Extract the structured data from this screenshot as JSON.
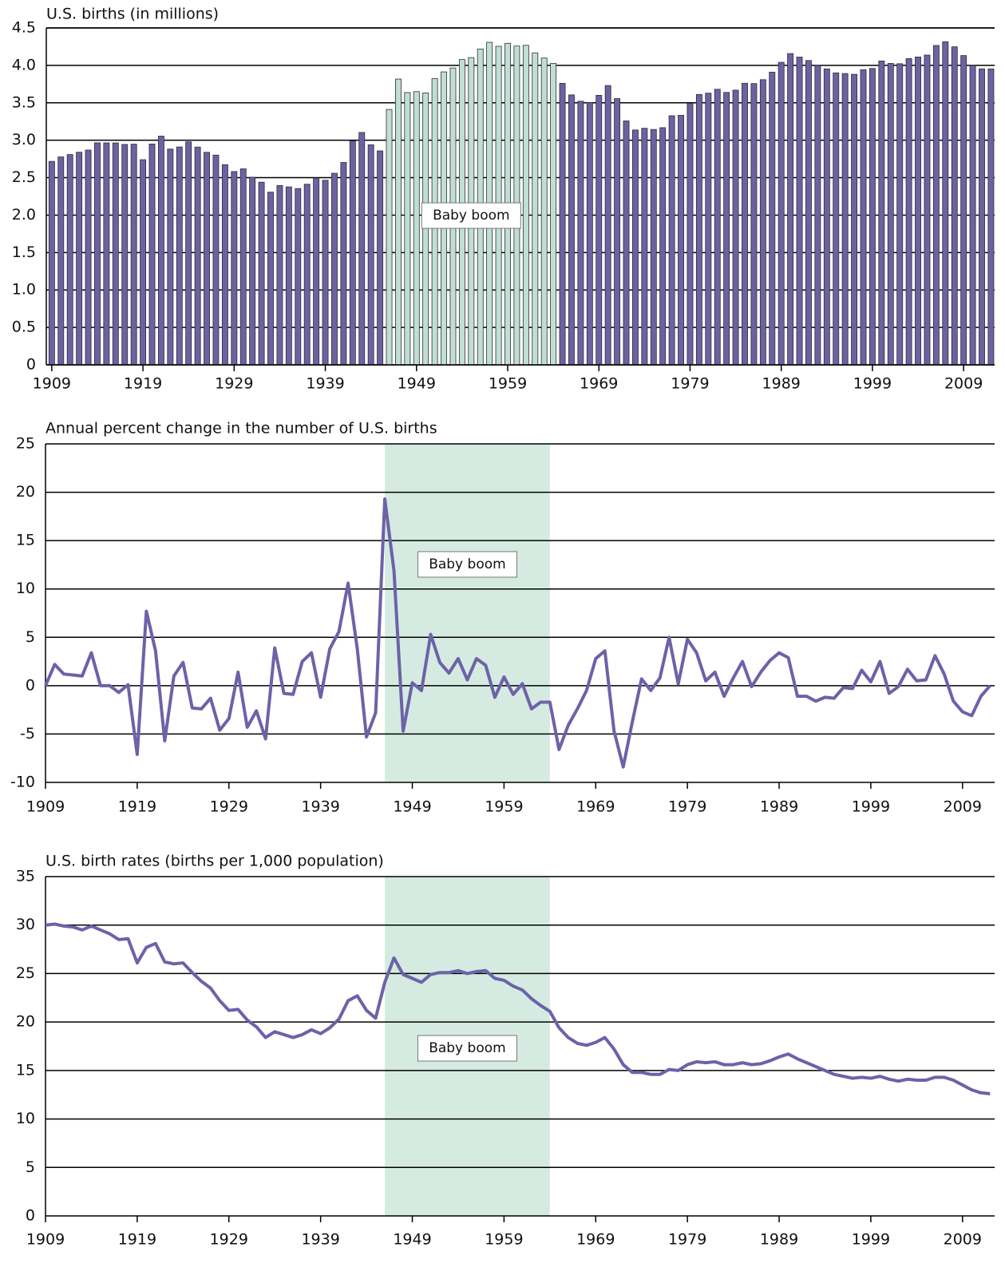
{
  "chart_data": [
    {
      "type": "bar",
      "title": "U.S. births (in millions)",
      "annotation": "Baby boom",
      "x": [
        1909,
        1910,
        1911,
        1912,
        1913,
        1914,
        1915,
        1916,
        1917,
        1918,
        1919,
        1920,
        1921,
        1922,
        1923,
        1924,
        1925,
        1926,
        1927,
        1928,
        1929,
        1930,
        1931,
        1932,
        1933,
        1934,
        1935,
        1936,
        1937,
        1938,
        1939,
        1940,
        1941,
        1942,
        1943,
        1944,
        1945,
        1946,
        1947,
        1948,
        1949,
        1950,
        1951,
        1952,
        1953,
        1954,
        1955,
        1956,
        1957,
        1958,
        1959,
        1960,
        1961,
        1962,
        1963,
        1964,
        1965,
        1966,
        1967,
        1968,
        1969,
        1970,
        1971,
        1972,
        1973,
        1974,
        1975,
        1976,
        1977,
        1978,
        1979,
        1980,
        1981,
        1982,
        1983,
        1984,
        1985,
        1986,
        1987,
        1988,
        1989,
        1990,
        1991,
        1992,
        1993,
        1994,
        1995,
        1996,
        1997,
        1998,
        1999,
        2000,
        2001,
        2002,
        2003,
        2004,
        2005,
        2006,
        2007,
        2008,
        2009,
        2010,
        2011,
        2012
      ],
      "values": [
        2.718,
        2.777,
        2.809,
        2.84,
        2.869,
        2.966,
        2.965,
        2.964,
        2.944,
        2.948,
        2.74,
        2.95,
        3.055,
        2.882,
        2.91,
        2.979,
        2.909,
        2.839,
        2.802,
        2.674,
        2.582,
        2.618,
        2.506,
        2.44,
        2.307,
        2.396,
        2.377,
        2.355,
        2.413,
        2.496,
        2.466,
        2.559,
        2.703,
        2.989,
        3.104,
        2.939,
        2.858,
        3.411,
        3.817,
        3.637,
        3.649,
        3.632,
        3.823,
        3.913,
        3.965,
        4.078,
        4.104,
        4.218,
        4.308,
        4.255,
        4.295,
        4.258,
        4.268,
        4.167,
        4.098,
        4.027,
        3.76,
        3.606,
        3.521,
        3.502,
        3.6,
        3.731,
        3.556,
        3.258,
        3.137,
        3.16,
        3.144,
        3.168,
        3.327,
        3.333,
        3.494,
        3.612,
        3.629,
        3.681,
        3.639,
        3.669,
        3.761,
        3.757,
        3.809,
        3.91,
        4.041,
        4.158,
        4.111,
        4.065,
        4.0,
        3.953,
        3.9,
        3.891,
        3.881,
        3.942,
        3.959,
        4.059,
        4.026,
        4.022,
        4.09,
        4.112,
        4.138,
        4.266,
        4.316,
        4.248,
        4.131,
        3.999,
        3.954,
        3.953
      ],
      "color": "#6d62a0",
      "highlight": [
        1946,
        1964
      ],
      "highlight_color": "#bfe0cf",
      "xlim": [
        1908.4,
        2012.4
      ],
      "xticks": [
        1909,
        1919,
        1929,
        1939,
        1949,
        1959,
        1969,
        1979,
        1989,
        1999,
        2009
      ],
      "ylim": [
        0,
        4.5
      ],
      "yticks": [
        0,
        0.5,
        {
          "value": 1,
          "label": "1.0"
        },
        1.5,
        {
          "value": 2,
          "label": "2.0"
        },
        2.5,
        {
          "value": 3,
          "label": "3.0"
        },
        3.5,
        {
          "value": 4,
          "label": "4.0"
        },
        4.5
      ],
      "grid": true
    },
    {
      "type": "line",
      "title": "Annual percent change in the number of U.S. births",
      "annotation": "Baby boom",
      "x": [
        1909,
        1910,
        1911,
        1912,
        1913,
        1914,
        1915,
        1916,
        1917,
        1918,
        1919,
        1920,
        1921,
        1922,
        1923,
        1924,
        1925,
        1926,
        1927,
        1928,
        1929,
        1930,
        1931,
        1932,
        1933,
        1934,
        1935,
        1936,
        1937,
        1938,
        1939,
        1940,
        1941,
        1942,
        1943,
        1944,
        1945,
        1946,
        1947,
        1948,
        1949,
        1950,
        1951,
        1952,
        1953,
        1954,
        1955,
        1956,
        1957,
        1958,
        1959,
        1960,
        1961,
        1962,
        1963,
        1964,
        1965,
        1966,
        1967,
        1968,
        1969,
        1970,
        1971,
        1972,
        1973,
        1974,
        1975,
        1976,
        1977,
        1978,
        1979,
        1980,
        1981,
        1982,
        1983,
        1984,
        1985,
        1986,
        1987,
        1988,
        1989,
        1990,
        1991,
        1992,
        1993,
        1994,
        1995,
        1996,
        1997,
        1998,
        1999,
        2000,
        2001,
        2002,
        2003,
        2004,
        2005,
        2006,
        2007,
        2008,
        2009,
        2010,
        2011,
        2012
      ],
      "values": [
        0,
        2.2,
        1.2,
        1.1,
        1.0,
        3.4,
        0,
        0,
        -0.7,
        0.1,
        -7.1,
        7.7,
        3.6,
        -5.7,
        1.0,
        2.4,
        -2.3,
        -2.4,
        -1.3,
        -4.6,
        -3.4,
        1.4,
        -4.3,
        -2.6,
        -5.5,
        3.9,
        -0.8,
        -0.9,
        2.5,
        3.4,
        -1.2,
        3.8,
        5.6,
        10.6,
        3.8,
        -5.3,
        -2.8,
        19.3,
        11.9,
        -4.7,
        0.3,
        -0.5,
        5.3,
        2.4,
        1.3,
        2.8,
        0.6,
        2.8,
        2.1,
        -1.2,
        0.9,
        -0.9,
        0.2,
        -2.4,
        -1.7,
        -1.7,
        -6.6,
        -4.1,
        -2.4,
        -0.5,
        2.8,
        3.6,
        -4.7,
        -8.4,
        -3.7,
        0.7,
        -0.5,
        0.8,
        5.0,
        0.2,
        4.8,
        3.4,
        0.5,
        1.4,
        -1.1,
        0.8,
        2.5,
        -0.1,
        1.4,
        2.6,
        3.4,
        2.9,
        -1.1,
        -1.1,
        -1.6,
        -1.2,
        -1.3,
        -0.2,
        -0.3,
        1.6,
        0.4,
        2.5,
        -0.8,
        -0.1,
        1.7,
        0.5,
        0.6,
        3.1,
        1.2,
        -1.6,
        -2.7,
        -3.1,
        -1.1,
        0.0
      ],
      "color": "#6d62a8",
      "highlight": [
        1946,
        1964
      ],
      "highlight_color": "#d5ebe1",
      "xlim": [
        1909,
        2012.5
      ],
      "xticks": [
        1909,
        1919,
        1929,
        1939,
        1949,
        1959,
        1969,
        1979,
        1989,
        1999,
        2009
      ],
      "ylim": [
        -10,
        25
      ],
      "yticks": [
        -10,
        -5,
        0,
        5,
        10,
        15,
        20,
        25
      ],
      "grid": true
    },
    {
      "type": "line",
      "title": "U.S. birth rates (births per 1,000 population)",
      "annotation": "Baby boom",
      "x": [
        1909,
        1910,
        1911,
        1912,
        1913,
        1914,
        1915,
        1916,
        1917,
        1918,
        1919,
        1920,
        1921,
        1922,
        1923,
        1924,
        1925,
        1926,
        1927,
        1928,
        1929,
        1930,
        1931,
        1932,
        1933,
        1934,
        1935,
        1936,
        1937,
        1938,
        1939,
        1940,
        1941,
        1942,
        1943,
        1944,
        1945,
        1946,
        1947,
        1948,
        1949,
        1950,
        1951,
        1952,
        1953,
        1954,
        1955,
        1956,
        1957,
        1958,
        1959,
        1960,
        1961,
        1962,
        1963,
        1964,
        1965,
        1966,
        1967,
        1968,
        1969,
        1970,
        1971,
        1972,
        1973,
        1974,
        1975,
        1976,
        1977,
        1978,
        1979,
        1980,
        1981,
        1982,
        1983,
        1984,
        1985,
        1986,
        1987,
        1988,
        1989,
        1990,
        1991,
        1992,
        1993,
        1994,
        1995,
        1996,
        1997,
        1998,
        1999,
        2000,
        2001,
        2002,
        2003,
        2004,
        2005,
        2006,
        2007,
        2008,
        2009,
        2010,
        2011,
        2012
      ],
      "values": [
        30.0,
        30.1,
        29.9,
        29.8,
        29.5,
        29.9,
        29.5,
        29.1,
        28.5,
        28.6,
        26.1,
        27.7,
        28.1,
        26.2,
        26.0,
        26.1,
        25.1,
        24.2,
        23.5,
        22.2,
        21.2,
        21.3,
        20.2,
        19.5,
        18.4,
        19.0,
        18.7,
        18.4,
        18.7,
        19.2,
        18.8,
        19.4,
        20.3,
        22.2,
        22.7,
        21.2,
        20.4,
        24.1,
        26.6,
        24.9,
        24.5,
        24.1,
        24.9,
        25.1,
        25.1,
        25.3,
        25.0,
        25.2,
        25.3,
        24.5,
        24.3,
        23.7,
        23.3,
        22.4,
        21.7,
        21.1,
        19.4,
        18.4,
        17.8,
        17.6,
        17.9,
        18.4,
        17.2,
        15.6,
        14.8,
        14.8,
        14.6,
        14.6,
        15.1,
        15.0,
        15.6,
        15.9,
        15.8,
        15.9,
        15.6,
        15.6,
        15.8,
        15.6,
        15.7,
        16.0,
        16.4,
        16.7,
        16.2,
        15.8,
        15.4,
        15.0,
        14.6,
        14.4,
        14.2,
        14.3,
        14.2,
        14.4,
        14.1,
        13.9,
        14.1,
        14.0,
        14.0,
        14.3,
        14.3,
        14.0,
        13.5,
        13.0,
        12.7,
        12.6
      ],
      "color": "#6d62a8",
      "highlight": [
        1946,
        1964
      ],
      "highlight_color": "#d5ebe1",
      "xlim": [
        1909,
        2012.5
      ],
      "xticks": [
        1909,
        1919,
        1929,
        1939,
        1949,
        1959,
        1969,
        1979,
        1989,
        1999,
        2009
      ],
      "ylim": [
        0,
        35
      ],
      "yticks": [
        0,
        5,
        10,
        15,
        20,
        25,
        30,
        35
      ],
      "grid": true
    }
  ]
}
